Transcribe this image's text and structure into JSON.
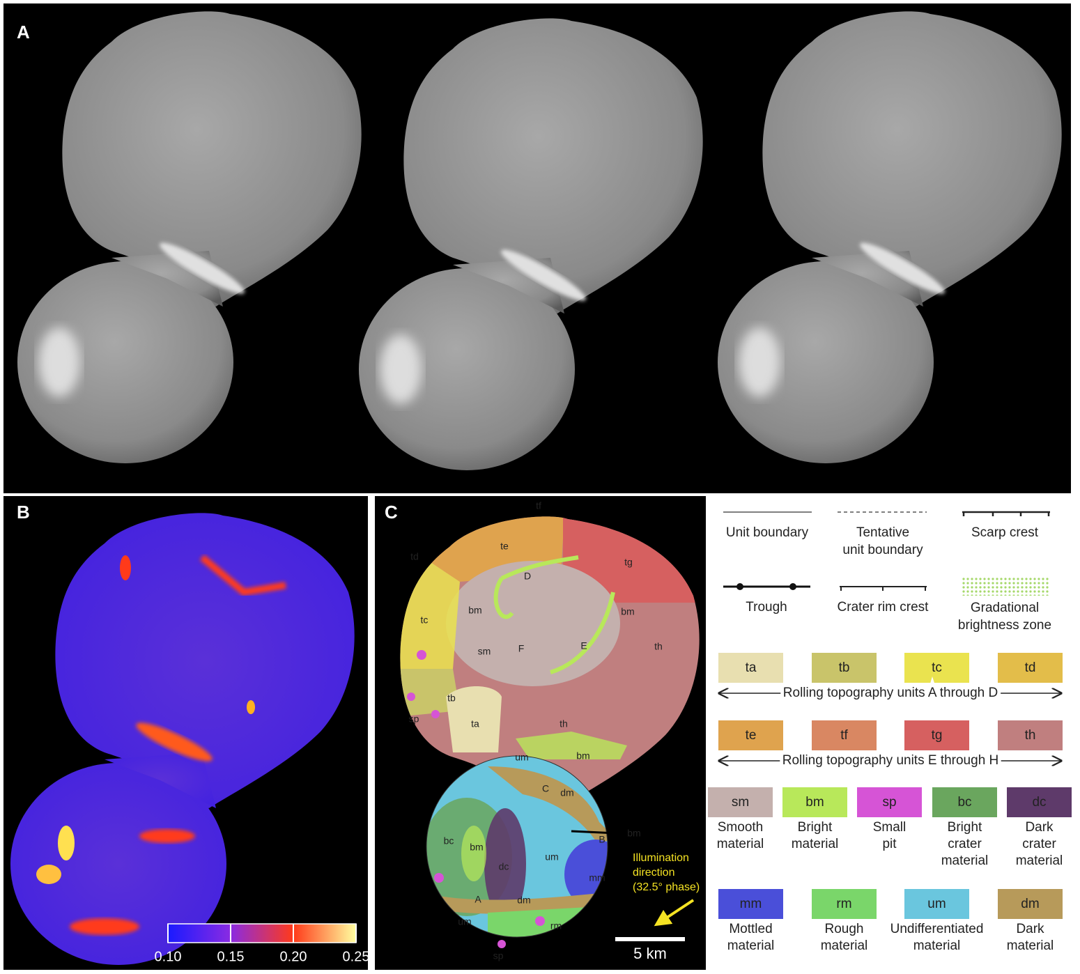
{
  "panel_a": {
    "label": "A"
  },
  "panel_b": {
    "label": "B",
    "colorbar": {
      "lim": [
        0.1,
        0.25
      ],
      "ticks": [
        {
          "value": 0.1,
          "label": "0.10"
        },
        {
          "value": 0.15,
          "label": "0.15"
        },
        {
          "value": 0.2,
          "label": "0.20"
        },
        {
          "value": 0.25,
          "label": "0.25"
        }
      ],
      "colors": [
        "#1a1aff",
        "#8a2be2",
        "#ff3a1a",
        "#ffffa0"
      ]
    }
  },
  "panel_c": {
    "label": "C",
    "map_labels": [
      "tf",
      "td",
      "te",
      "tg",
      "D",
      "bm",
      "tc",
      "sm",
      "F",
      "E",
      "bm",
      "th",
      "tb",
      "sp",
      "ta",
      "th",
      "um",
      "bm",
      "C",
      "dm",
      "bc",
      "bm",
      "dc",
      "um",
      "B",
      "bm",
      "mm",
      "A",
      "dm",
      "um",
      "rm",
      "sp"
    ],
    "illumination": [
      "Illumination",
      "direction",
      "(32.5° phase)"
    ],
    "scale_bar": "5 km"
  },
  "legend": {
    "symbols": [
      [
        "Unit boundary"
      ],
      [
        "Tentative",
        "unit boundary"
      ],
      [
        "Scarp crest"
      ],
      [
        "Trough"
      ],
      [
        "Crater rim crest"
      ],
      [
        "Gradational",
        "brightness zone"
      ]
    ],
    "groups": [
      {
        "units": [
          {
            "code": "ta",
            "color": "#e8dfb0"
          },
          {
            "code": "tb",
            "color": "#c9c46a"
          },
          {
            "code": "tc",
            "color": "#eae34f"
          },
          {
            "code": "td",
            "color": "#e3bd4a"
          }
        ],
        "caption": "Rolling topography units A through D"
      },
      {
        "units": [
          {
            "code": "te",
            "color": "#dfa34e"
          },
          {
            "code": "tf",
            "color": "#d98762"
          },
          {
            "code": "tg",
            "color": "#d66060"
          },
          {
            "code": "th",
            "color": "#c07f7f"
          }
        ],
        "caption": "Rolling topography units E through H"
      }
    ],
    "materials": [
      {
        "code": "sm",
        "color": "#c4b0ad",
        "name": [
          "Smooth",
          "material"
        ]
      },
      {
        "code": "bm",
        "color": "#b8e85a",
        "name": [
          "Bright",
          "material"
        ]
      },
      {
        "code": "sp",
        "color": "#d654d6",
        "name": [
          "Small",
          "pit"
        ]
      },
      {
        "code": "bc",
        "color": "#6aa65e",
        "name": [
          "Bright",
          "crater",
          "material"
        ]
      },
      {
        "code": "dc",
        "color": "#5e3a6a",
        "name": [
          "Dark",
          "crater",
          "material"
        ]
      },
      {
        "code": "mm",
        "color": "#4a4fd9",
        "name": [
          "Mottled",
          "material"
        ]
      },
      {
        "code": "rm",
        "color": "#7ad66a",
        "name": [
          "Rough",
          "material"
        ]
      },
      {
        "code": "um",
        "color": "#6ac6de",
        "name": [
          "Undifferentiated",
          "material"
        ]
      },
      {
        "code": "dm",
        "color": "#b79a5a",
        "name": [
          "Dark",
          "material"
        ]
      }
    ]
  }
}
